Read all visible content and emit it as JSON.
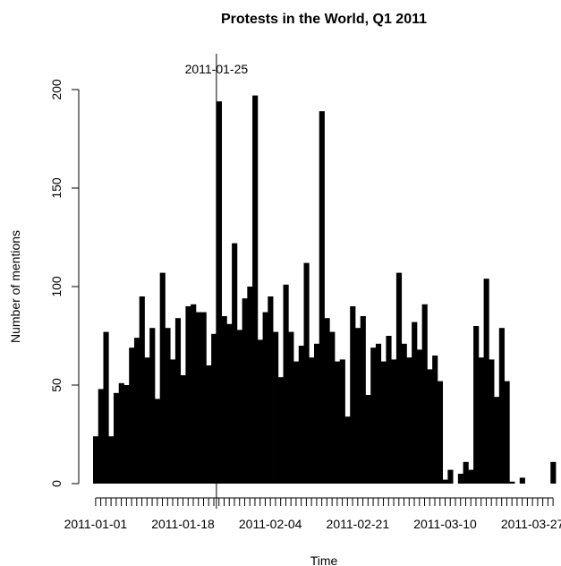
{
  "chart_data": {
    "type": "bar",
    "title": "Protests in the World, Q1 2011",
    "xlabel": "Time",
    "ylabel": "Number of mentions",
    "ylim": [
      0,
      200
    ],
    "yticks": [
      0,
      50,
      100,
      150,
      200
    ],
    "x_start": "2011-01-01",
    "x_end": "2011-03-31",
    "xtick_labels": [
      {
        "label": "2011-01-01",
        "date": "2011-01-01"
      },
      {
        "label": "2011-01-18",
        "date": "2011-01-18"
      },
      {
        "label": "2011-02-04",
        "date": "2011-02-04"
      },
      {
        "label": "2011-02-21",
        "date": "2011-02-21"
      },
      {
        "label": "2011-03-10",
        "date": "2011-03-10"
      },
      {
        "label": "2011-03-27",
        "date": "2011-03-27"
      }
    ],
    "annotation": {
      "label": "2011-01-25",
      "date": "2011-01-25"
    },
    "values": [
      24,
      48,
      77,
      24,
      46,
      51,
      50,
      69,
      74,
      95,
      64,
      79,
      43,
      107,
      79,
      63,
      84,
      55,
      90,
      91,
      87,
      87,
      60,
      76,
      194,
      85,
      81,
      122,
      78,
      94,
      100,
      197,
      73,
      87,
      95,
      77,
      54,
      101,
      77,
      62,
      70,
      112,
      64,
      71,
      189,
      84,
      77,
      62,
      63,
      34,
      90,
      79,
      85,
      45,
      69,
      71,
      62,
      75,
      63,
      107,
      71,
      64,
      82,
      68,
      91,
      58,
      65,
      52,
      2,
      7,
      0,
      5,
      11,
      7,
      80,
      64,
      104,
      63,
      44,
      79,
      52,
      1,
      0,
      3,
      0,
      0,
      0,
      0,
      0,
      11
    ],
    "grid": false,
    "legend": "none"
  }
}
